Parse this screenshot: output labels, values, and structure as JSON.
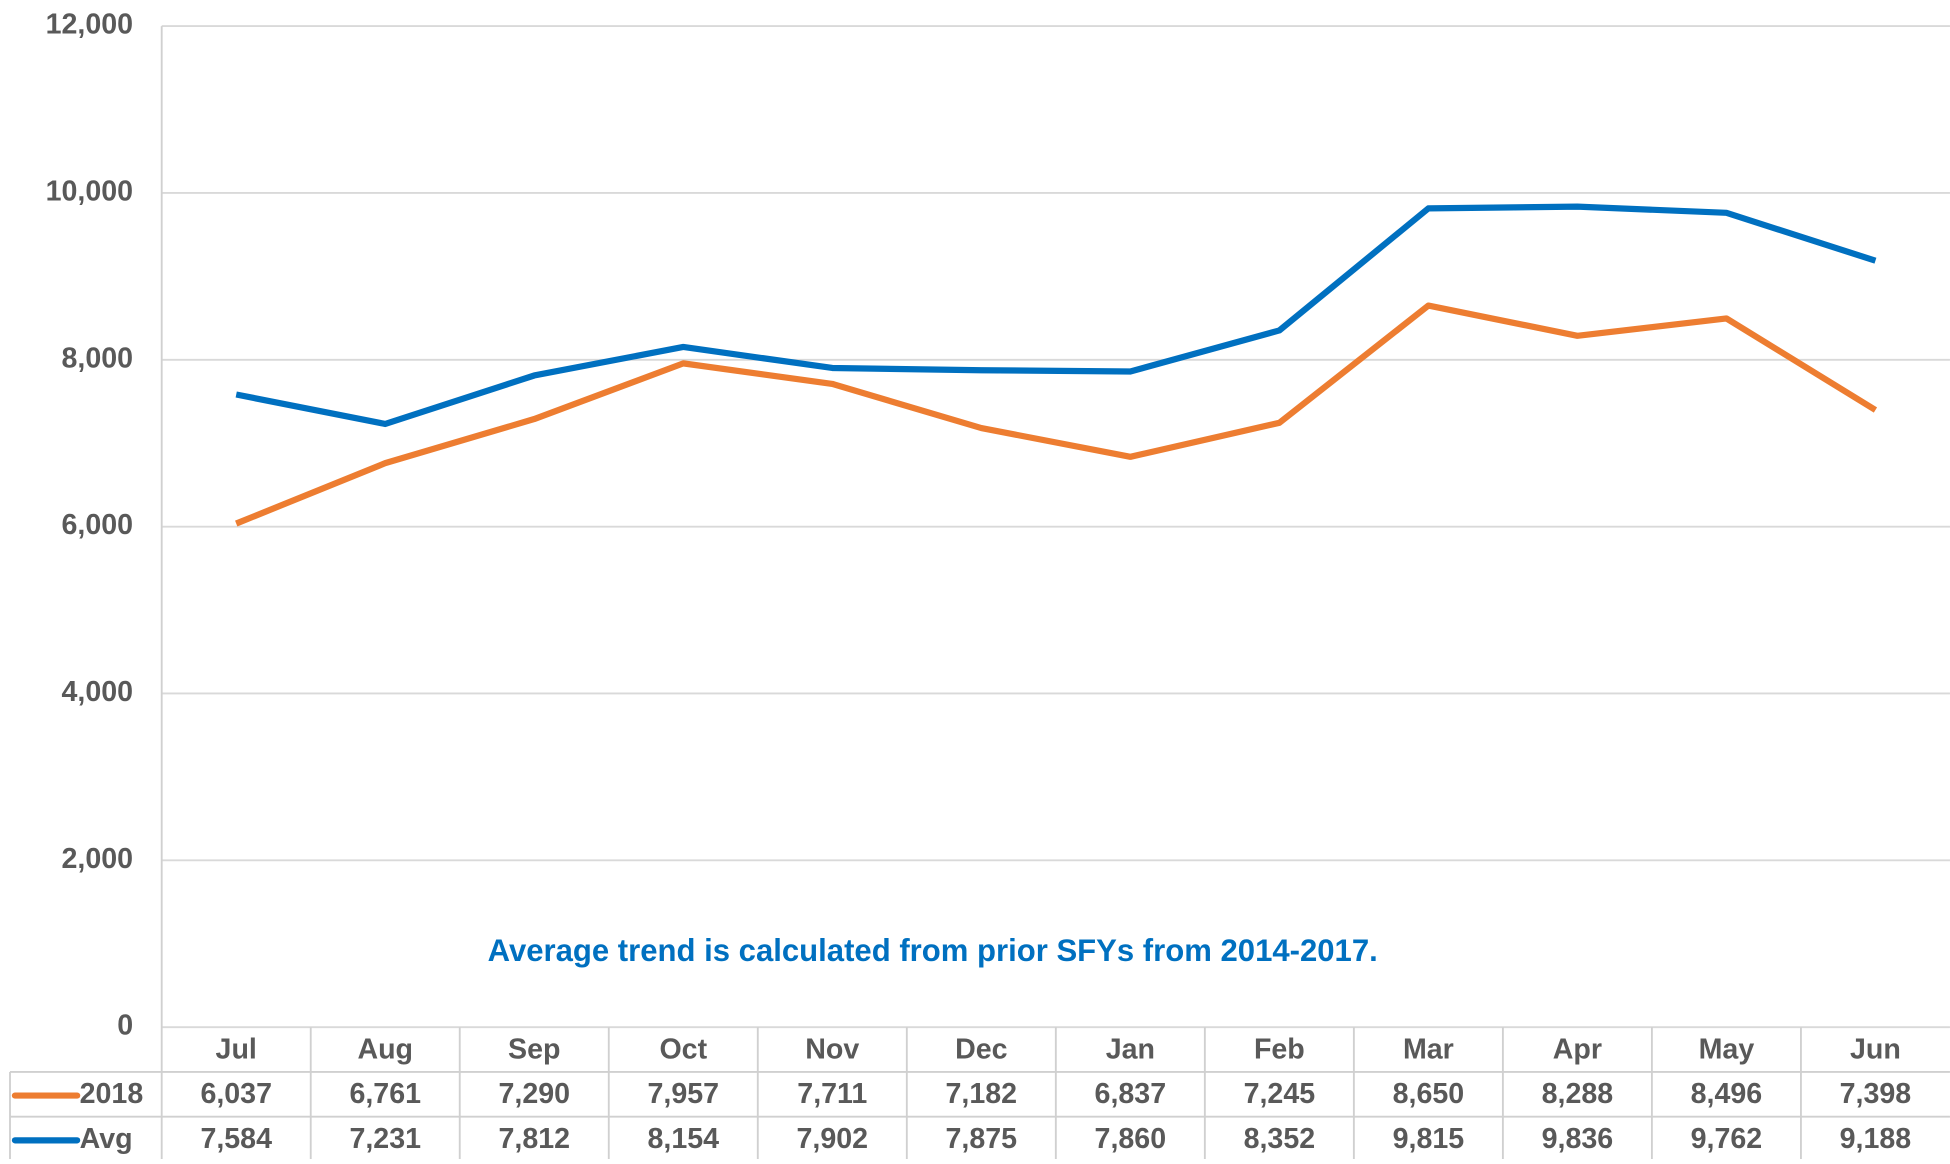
{
  "chart_data": {
    "type": "line",
    "annotation": "Average trend is calculated from prior SFYs from 2014-2017.",
    "categories": [
      "Jul",
      "Aug",
      "Sep",
      "Oct",
      "Nov",
      "Dec",
      "Jan",
      "Feb",
      "Mar",
      "Apr",
      "May",
      "Jun"
    ],
    "series": [
      {
        "name": "2018",
        "color": "#ed7d31",
        "values": [
          6037,
          6761,
          7290,
          7957,
          7711,
          7182,
          6837,
          7245,
          8650,
          8288,
          8496,
          7398
        ],
        "value_labels": [
          "6,037",
          "6,761",
          "7,290",
          "7,957",
          "7,711",
          "7,182",
          "6,837",
          "7,245",
          "8,650",
          "8,288",
          "8,496",
          "7,398"
        ]
      },
      {
        "name": "Avg",
        "color": "#0070c0",
        "values": [
          7584,
          7231,
          7812,
          8154,
          7902,
          7875,
          7860,
          8352,
          9815,
          9836,
          9762,
          9188
        ],
        "value_labels": [
          "7,584",
          "7,231",
          "7,812",
          "8,154",
          "7,902",
          "7,875",
          "7,860",
          "8,352",
          "9,815",
          "9,836",
          "9,762",
          "9,188"
        ]
      }
    ],
    "ylim": [
      0,
      12000
    ],
    "yticks": [
      0,
      {
        "value": 2000,
        "label": "2,000"
      },
      {
        "value": 4000,
        "label": "4,000"
      },
      {
        "value": 6000,
        "label": "6,000"
      },
      {
        "value": 8000,
        "label": "8,000"
      },
      {
        "value": 10000,
        "label": "10,000"
      },
      {
        "value": 12000,
        "label": "12,000"
      }
    ],
    "grid": true
  }
}
